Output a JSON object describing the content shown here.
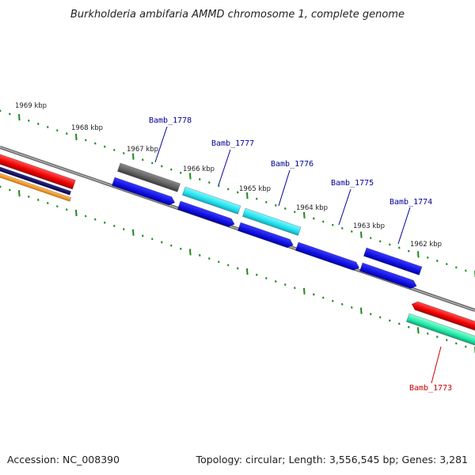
{
  "title": "Burkholderia ambifaria AMMD chromosome 1, complete genome",
  "footer": {
    "accession": "Accession: NC_008390",
    "topology": "Topology: circular; Length: 3,556,545 bp; Genes: 3,281"
  },
  "ticks": [
    "1969 kbp",
    "1968 kbp",
    "1967 kbp",
    "1966 kbp",
    "1965 kbp",
    "1964 kbp",
    "1963 kbp",
    "1962 kbp"
  ],
  "genes": [
    {
      "label": "Bamb_1778",
      "color": "#000099"
    },
    {
      "label": "Bamb_1777",
      "color": "#000099"
    },
    {
      "label": "Bamb_1776",
      "color": "#000099"
    },
    {
      "label": "Bamb_1775",
      "color": "#000099"
    },
    {
      "label": "Bamb_1774",
      "color": "#000099"
    },
    {
      "label": "Bamb_1773",
      "color": "#cc0000"
    }
  ],
  "colors": {
    "blue": "#1414e6",
    "gray": "#666666",
    "cyan": "#22e5f0",
    "red": "#ee0000",
    "green": "#22e8a8",
    "navy": "#0a0a66",
    "orange": "#f59a18",
    "tick": "#1a8a1a",
    "backbone": "#888888"
  }
}
